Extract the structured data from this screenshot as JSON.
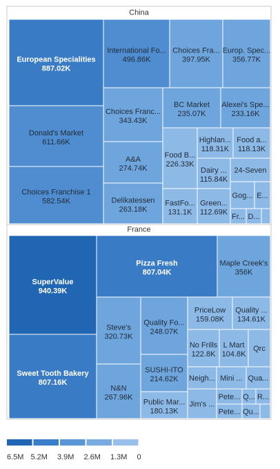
{
  "chart_data": {
    "type": "treemap",
    "value_suffix": "K",
    "groups": [
      {
        "name": "China",
        "items": [
          {
            "label": "European Specialities",
            "value_label": "887.02K",
            "value": 887.02,
            "level": 4
          },
          {
            "label": "Donald's Market",
            "value_label": "611.66K",
            "value": 611.66,
            "level": 3
          },
          {
            "label": "Choices Franchise 1",
            "value_label": "582.54K",
            "value": 582.54,
            "level": 3
          },
          {
            "label": "International Fo...",
            "value_label": "496.86K",
            "value": 496.86,
            "level": 3
          },
          {
            "label": "Choices Fra...",
            "value_label": "397.95K",
            "value": 397.95,
            "level": 2
          },
          {
            "label": "Europ. Spec...",
            "value_label": "356.77K",
            "value": 356.77,
            "level": 2
          },
          {
            "label": "Choices Franc...",
            "value_label": "343.43K",
            "value": 343.43,
            "level": 2
          },
          {
            "label": "BC Market",
            "value_label": "235.07K",
            "value": 235.07,
            "level": 2
          },
          {
            "label": "Alexei's Spe...",
            "value_label": "233.16K",
            "value": 233.16,
            "level": 2
          },
          {
            "label": "A&A",
            "value_label": "274.74K",
            "value": 274.74,
            "level": 2
          },
          {
            "label": "Food B...",
            "value_label": "226.33K",
            "value": 226.33,
            "level": 1
          },
          {
            "label": "Highlan...",
            "value_label": "118.31K",
            "value": 118.31,
            "level": 1
          },
          {
            "label": "Food a...",
            "value_label": "118.13K",
            "value": 118.13,
            "level": 1
          },
          {
            "label": "Dairy ...",
            "value_label": "115.84K",
            "value": 115.84,
            "level": 1
          },
          {
            "label": "24-Seven",
            "value_label": "",
            "value": 100,
            "level": 1
          },
          {
            "label": "Delikatessen",
            "value_label": "263.18K",
            "value": 263.18,
            "level": 2
          },
          {
            "label": "FastFo...",
            "value_label": "131.1K",
            "value": 131.1,
            "level": 1
          },
          {
            "label": "Green...",
            "value_label": "112.69K",
            "value": 112.69,
            "level": 1
          },
          {
            "label": "Gog...",
            "value_label": "",
            "value": 60,
            "level": 1
          },
          {
            "label": "E...",
            "value_label": "",
            "value": 40,
            "level": 1
          },
          {
            "label": "Fr...",
            "value_label": "",
            "value": 40,
            "level": 1
          },
          {
            "label": "D...",
            "value_label": "",
            "value": 40,
            "level": 1
          },
          {
            "label": "",
            "value_label": "",
            "value": 15,
            "level": 1
          }
        ]
      },
      {
        "name": "France",
        "items": [
          {
            "label": "SuperValue",
            "value_label": "940.39K",
            "value": 940.39,
            "level": 5
          },
          {
            "label": "Sweet Tooth Bakery",
            "value_label": "807.16K",
            "value": 807.16,
            "level": 4
          },
          {
            "label": "Pizza Fresh",
            "value_label": "807.04K",
            "value": 807.04,
            "level": 4
          },
          {
            "label": "Maple Creek's",
            "value_label": "356K",
            "value": 356,
            "level": 2
          },
          {
            "label": "Steve's",
            "value_label": "320.73K",
            "value": 320.73,
            "level": 2
          },
          {
            "label": "N&N",
            "value_label": "267.96K",
            "value": 267.96,
            "level": 2
          },
          {
            "label": "Quality Fo...",
            "value_label": "248.07K",
            "value": 248.07,
            "level": 2
          },
          {
            "label": "SUSHI-ITO",
            "value_label": "214.62K",
            "value": 214.62,
            "level": 2
          },
          {
            "label": "Public Mar...",
            "value_label": "180.13K",
            "value": 180.13,
            "level": 1
          },
          {
            "label": "PriceLow",
            "value_label": "159.08K",
            "value": 159.08,
            "level": 1
          },
          {
            "label": "Quality ...",
            "value_label": "134.61K",
            "value": 134.61,
            "level": 1
          },
          {
            "label": "No Frills",
            "value_label": "122.8K",
            "value": 122.8,
            "level": 1
          },
          {
            "label": "L Mart",
            "value_label": "104.8K",
            "value": 104.8,
            "level": 1
          },
          {
            "label": "Qrc",
            "value_label": "",
            "value": 70,
            "level": 1
          },
          {
            "label": "Neigh...",
            "value_label": "",
            "value": 60,
            "level": 1
          },
          {
            "label": "Mini ...",
            "value_label": "",
            "value": 55,
            "level": 1
          },
          {
            "label": "Qua...",
            "value_label": "",
            "value": 50,
            "level": 1
          },
          {
            "label": "Jim's ...",
            "value_label": "",
            "value": 50,
            "level": 1
          },
          {
            "label": "Pete...",
            "value_label": "",
            "value": 45,
            "level": 1
          },
          {
            "label": "Q...",
            "value_label": "",
            "value": 25,
            "level": 1
          },
          {
            "label": "R...",
            "value_label": "",
            "value": 25,
            "level": 1
          },
          {
            "label": "Pete...",
            "value_label": "",
            "value": 40,
            "level": 1
          },
          {
            "label": "Qu...",
            "value_label": "",
            "value": 25,
            "level": 1
          },
          {
            "label": "",
            "value_label": "",
            "value": 15,
            "level": 1
          }
        ]
      }
    ],
    "legend": {
      "labels": [
        "6.5M",
        "5.2M",
        "3.9M",
        "2.6M",
        "1.3M",
        "0"
      ],
      "colors": [
        "#2166b3",
        "#3a7dc8",
        "#5a95d6",
        "#7aabe0",
        "#99c0ea"
      ]
    }
  }
}
